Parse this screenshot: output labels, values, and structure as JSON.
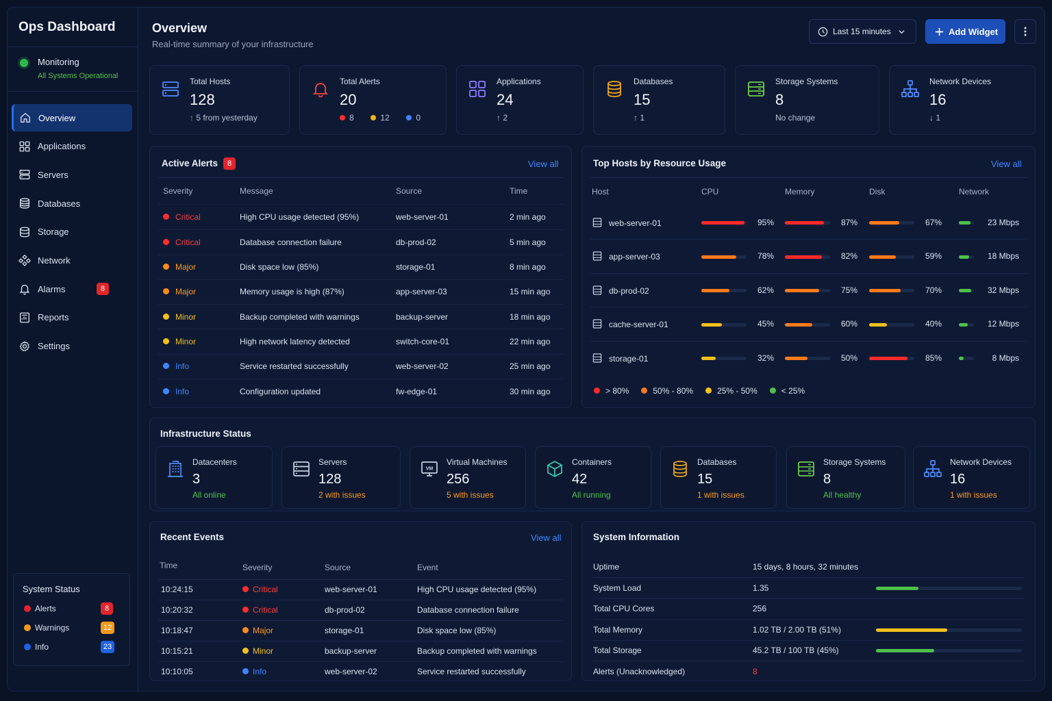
{
  "app": {
    "brand": "Ops Dashboard"
  },
  "monitoring": {
    "label": "Monitoring",
    "status": "All Systems Operational"
  },
  "nav": [
    {
      "label": "Overview",
      "icon": "home-icon",
      "active": true
    },
    {
      "label": "Applications",
      "icon": "grid-icon"
    },
    {
      "label": "Servers",
      "icon": "server-icon"
    },
    {
      "label": "Databases",
      "icon": "database-icon"
    },
    {
      "label": "Storage",
      "icon": "storage-icon"
    },
    {
      "label": "Network",
      "icon": "network-icon"
    },
    {
      "label": "Alarms",
      "icon": "bell-icon",
      "badge": "8"
    },
    {
      "label": "Reports",
      "icon": "report-icon"
    },
    {
      "label": "Settings",
      "icon": "gear-icon"
    }
  ],
  "system_status": {
    "title": "System Status",
    "items": [
      {
        "label": "Alerts",
        "count": "8",
        "color": "#e0262c"
      },
      {
        "label": "Warnings",
        "count": "12",
        "color": "#f29a1a"
      },
      {
        "label": "Info",
        "count": "23",
        "color": "#1f63e0"
      }
    ]
  },
  "header": {
    "title": "Overview",
    "subtitle": "Real-time summary of your infrastructure",
    "time_range": "Last 15 minutes",
    "add_widget": "Add Widget"
  },
  "kpis": {
    "hosts": {
      "label": "Total Hosts",
      "value": "128",
      "sub": "5 from yesterday"
    },
    "alerts": {
      "label": "Total Alerts",
      "value": "20",
      "critical": "8",
      "major": "12",
      "info": "0"
    },
    "apps": {
      "label": "Applications",
      "value": "24",
      "sub": "2"
    },
    "dbs": {
      "label": "Databases",
      "value": "15",
      "sub": "1"
    },
    "storage": {
      "label": "Storage Systems",
      "value": "8",
      "sub": "No change"
    },
    "network": {
      "label": "Network Devices",
      "value": "16",
      "sub": "1"
    }
  },
  "active_alerts": {
    "title": "Active Alerts",
    "badge": "8",
    "view_all": "View all",
    "columns": [
      "Severity",
      "Message",
      "Source",
      "Time"
    ],
    "rows": [
      {
        "severity": "Critical",
        "level": "crit",
        "message": "High CPU usage detected (95%)",
        "source": "web-server-01",
        "time": "2 min ago"
      },
      {
        "severity": "Critical",
        "level": "crit",
        "message": "Database connection failure",
        "source": "db-prod-02",
        "time": "5 min ago"
      },
      {
        "severity": "Major",
        "level": "maj",
        "message": "Disk space low (85%)",
        "source": "storage-01",
        "time": "8 min ago"
      },
      {
        "severity": "Major",
        "level": "maj",
        "message": "Memory usage is high (87%)",
        "source": "app-server-03",
        "time": "15 min ago"
      },
      {
        "severity": "Minor",
        "level": "min",
        "message": "Backup completed with warnings",
        "source": "backup-server",
        "time": "18 min ago"
      },
      {
        "severity": "Minor",
        "level": "min",
        "message": "High network latency detected",
        "source": "switch-core-01",
        "time": "22 min ago"
      },
      {
        "severity": "Info",
        "level": "inf",
        "message": "Service restarted successfully",
        "source": "web-server-02",
        "time": "25 min ago"
      },
      {
        "severity": "Info",
        "level": "inf",
        "message": "Configuration updated",
        "source": "fw-edge-01",
        "time": "30 min ago"
      }
    ]
  },
  "top_hosts": {
    "title": "Top Hosts by Resource Usage",
    "view_all": "View all",
    "columns": [
      "Host",
      "CPU",
      "Memory",
      "Disk",
      "Network"
    ],
    "rows": [
      {
        "host": "web-server-01",
        "cpu": 95,
        "memory": 87,
        "disk": 67,
        "network": "23 Mbps",
        "net_level": 0.75
      },
      {
        "host": "app-server-03",
        "cpu": 78,
        "memory": 82,
        "disk": 59,
        "network": "18 Mbps",
        "net_level": 0.7
      },
      {
        "host": "db-prod-02",
        "cpu": 62,
        "memory": 75,
        "disk": 70,
        "network": "32 Mbps",
        "net_level": 0.8
      },
      {
        "host": "cache-server-01",
        "cpu": 45,
        "memory": 60,
        "disk": 40,
        "network": "12 Mbps",
        "net_level": 0.6
      },
      {
        "host": "storage-01",
        "cpu": 32,
        "memory": 50,
        "disk": 85,
        "network": "8 Mbps",
        "net_level": 0.3
      }
    ],
    "legend": [
      {
        "label": "> 80%",
        "color": "#ff2a2a"
      },
      {
        "label": "50% - 80%",
        "color": "#ff7a1a"
      },
      {
        "label": "25% - 50%",
        "color": "#f2c01a"
      },
      {
        "label": "< 25%",
        "color": "#4fc04a"
      }
    ]
  },
  "infra": {
    "title": "Infrastructure Status",
    "items": [
      {
        "label": "Datacenters",
        "value": "3",
        "sub": "All online",
        "tone": "green",
        "icon": "building-icon"
      },
      {
        "label": "Servers",
        "value": "128",
        "sub": "2 with issues",
        "tone": "orange",
        "icon": "server-icon"
      },
      {
        "label": "Virtual Machines",
        "value": "256",
        "sub": "5 with issues",
        "tone": "orange",
        "icon": "vm-icon"
      },
      {
        "label": "Containers",
        "value": "42",
        "sub": "All running",
        "tone": "green",
        "icon": "container-icon"
      },
      {
        "label": "Databases",
        "value": "15",
        "sub": "1 with issues",
        "tone": "orange",
        "icon": "database-icon"
      },
      {
        "label": "Storage Systems",
        "value": "8",
        "sub": "All healthy",
        "tone": "green",
        "icon": "storage-icon"
      },
      {
        "label": "Network Devices",
        "value": "16",
        "sub": "1 with issues",
        "tone": "orange",
        "icon": "network-icon"
      }
    ]
  },
  "recent_events": {
    "title": "Recent Events",
    "view_all": "View all",
    "columns": [
      "Time",
      "Severity",
      "Source",
      "Event"
    ],
    "rows": [
      {
        "time": "10:24:15",
        "severity": "Critical",
        "level": "crit",
        "source": "web-server-01",
        "event": "High CPU usage detected (95%)"
      },
      {
        "time": "10:20:32",
        "severity": "Critical",
        "level": "crit",
        "source": "db-prod-02",
        "event": "Database connection failure"
      },
      {
        "time": "10:18:47",
        "severity": "Major",
        "level": "maj",
        "source": "storage-01",
        "event": "Disk space low (85%)"
      },
      {
        "time": "10:15:21",
        "severity": "Minor",
        "level": "min",
        "source": "backup-server",
        "event": "Backup completed with warnings"
      },
      {
        "time": "10:10:05",
        "severity": "Info",
        "level": "inf",
        "source": "web-server-02",
        "event": "Service restarted successfully"
      }
    ]
  },
  "system_info": {
    "title": "System Information",
    "rows": [
      {
        "key": "Uptime",
        "value": "15 days, 8 hours, 32 minutes"
      },
      {
        "key": "System Load",
        "value": "1.35",
        "level": 0.29,
        "color": "#4fc04a"
      },
      {
        "key": "Total CPU Cores",
        "value": "256"
      },
      {
        "key": "Total Memory",
        "value": "1.02 TB / 2.00 TB (51%)",
        "level": 0.49,
        "color": "#f2c01a"
      },
      {
        "key": "Total Storage",
        "value": "45.2 TB / 100 TB (45%)",
        "level": 0.4,
        "color": "#4fc04a"
      },
      {
        "key": "Alerts (Unacknowledged)",
        "value": "8",
        "alert": true
      }
    ]
  }
}
